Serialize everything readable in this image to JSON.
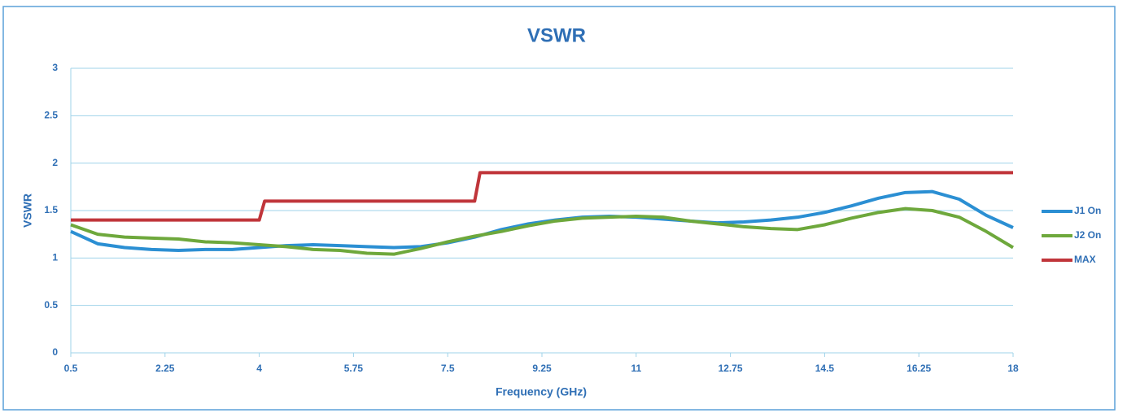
{
  "chart_data": {
    "type": "line",
    "title": "VSWR",
    "x_label": "Frequency (GHz)",
    "y_label": "VSWR",
    "xlim": [
      0.5,
      18
    ],
    "xticks": [
      0.5,
      2.25,
      4,
      5.75,
      7.5,
      9.25,
      11,
      12.75,
      14.5,
      16.25,
      18
    ],
    "ylim": [
      0,
      3
    ],
    "yticks": [
      0,
      0.5,
      1,
      1.5,
      2,
      2.5,
      3
    ],
    "grid": true,
    "legend": "right",
    "series": [
      {
        "name": "J1 On",
        "color": "#2b8fd3",
        "x": [
          0.5,
          1,
          1.5,
          2,
          2.5,
          3,
          3.5,
          4,
          4.5,
          5,
          5.5,
          6,
          6.5,
          7,
          7.5,
          8,
          8.5,
          9,
          9.5,
          10,
          10.5,
          11,
          11.5,
          12,
          12.5,
          13,
          13.5,
          14,
          14.5,
          15,
          15.5,
          16,
          16.5,
          17,
          17.5,
          18
        ],
        "values": [
          1.28,
          1.15,
          1.11,
          1.09,
          1.08,
          1.09,
          1.09,
          1.11,
          1.13,
          1.14,
          1.13,
          1.12,
          1.11,
          1.12,
          1.16,
          1.22,
          1.3,
          1.36,
          1.4,
          1.43,
          1.44,
          1.43,
          1.41,
          1.39,
          1.37,
          1.38,
          1.4,
          1.43,
          1.48,
          1.55,
          1.63,
          1.69,
          1.7,
          1.62,
          1.45,
          1.32
        ]
      },
      {
        "name": "J2 On",
        "color": "#6ea83c",
        "x": [
          0.5,
          1,
          1.5,
          2,
          2.5,
          3,
          3.5,
          4,
          4.5,
          5,
          5.5,
          6,
          6.5,
          7,
          7.5,
          8,
          8.5,
          9,
          9.5,
          10,
          10.5,
          11,
          11.5,
          12,
          12.5,
          13,
          13.5,
          14,
          14.5,
          15,
          15.5,
          16,
          16.5,
          17,
          17.5,
          18
        ],
        "values": [
          1.35,
          1.25,
          1.22,
          1.21,
          1.2,
          1.17,
          1.16,
          1.14,
          1.12,
          1.09,
          1.08,
          1.05,
          1.04,
          1.1,
          1.17,
          1.23,
          1.28,
          1.34,
          1.39,
          1.42,
          1.43,
          1.44,
          1.43,
          1.39,
          1.36,
          1.33,
          1.31,
          1.3,
          1.35,
          1.42,
          1.48,
          1.52,
          1.5,
          1.43,
          1.28,
          1.11
        ]
      },
      {
        "name": "MAX",
        "color": "#c0353a",
        "x": [
          0.5,
          4,
          4.1,
          8,
          8.1,
          18
        ],
        "values": [
          1.4,
          1.4,
          1.6,
          1.6,
          1.9,
          1.9
        ]
      }
    ]
  }
}
